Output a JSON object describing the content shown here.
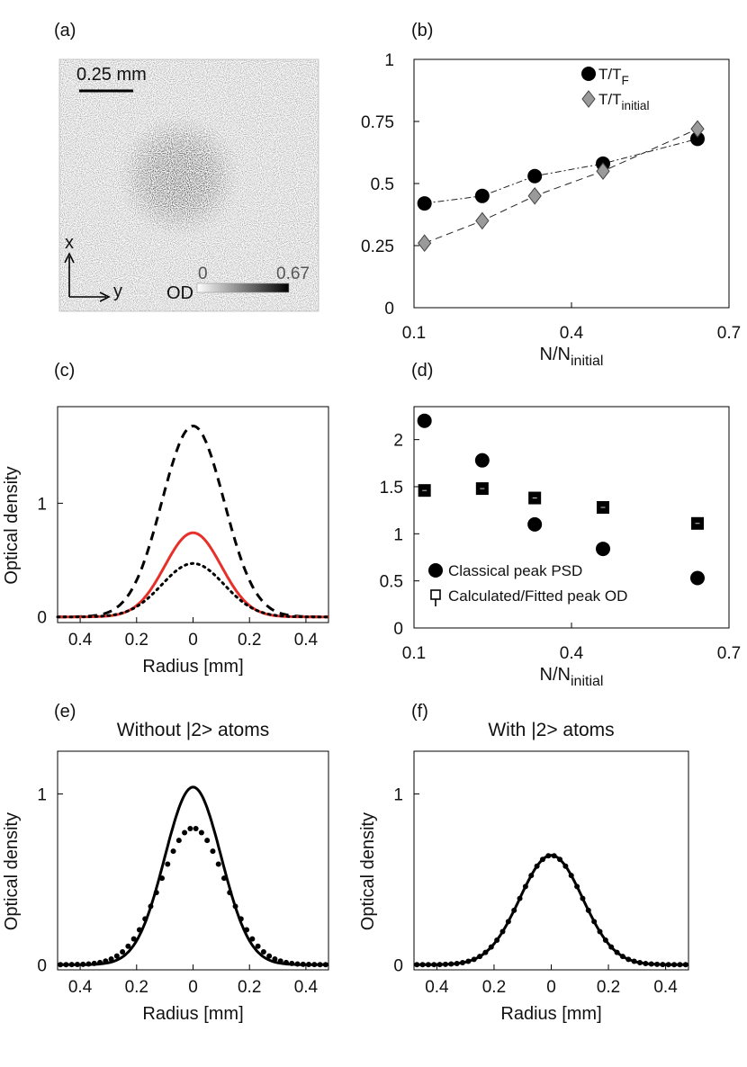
{
  "panel_labels": [
    "(a)",
    "(b)",
    "(c)",
    "(d)",
    "(e)",
    "(f)"
  ],
  "panel_a": {
    "scale_label": "0.25 mm",
    "axis_x": "x",
    "axis_y": "y",
    "od_label": "OD",
    "cbar_min": "0",
    "cbar_max": "0.67",
    "colormap": [
      "#ffffff",
      "#000000"
    ]
  },
  "chart_data": [
    {
      "panel": "b",
      "type": "line",
      "xlabel_main": "N/N",
      "xlabel_sub": "initial",
      "ylabel": "",
      "xlim": [
        0.1,
        0.7
      ],
      "ylim": [
        0,
        1
      ],
      "x_ticks": [
        "0.1",
        "0.4",
        "0.7"
      ],
      "y_ticks": [
        "0",
        "0.25",
        "0.5",
        "0.75",
        "1"
      ],
      "legend_position": "top-right",
      "series": [
        {
          "name_main": "T/T",
          "name_sub": "F",
          "marker": "circle",
          "color": "#000000",
          "line": "dash-dot",
          "x": [
            0.12,
            0.23,
            0.33,
            0.46,
            0.64
          ],
          "y": [
            0.42,
            0.45,
            0.53,
            0.58,
            0.68
          ]
        },
        {
          "name_main": "T/T",
          "name_sub": "initial",
          "marker": "diamond",
          "color": "#9a9a9a",
          "line": "dashed",
          "x": [
            0.12,
            0.23,
            0.33,
            0.46,
            0.64
          ],
          "y": [
            0.26,
            0.35,
            0.45,
            0.55,
            0.72
          ]
        }
      ]
    },
    {
      "panel": "c",
      "type": "line",
      "xlabel": "Radius [mm]",
      "ylabel": "Optical density",
      "xlim": [
        -0.48,
        0.48
      ],
      "ylim": [
        -0.05,
        1.85
      ],
      "x_ticks": [
        "0.4",
        "0.2",
        "0",
        "0.2",
        "0.4"
      ],
      "y_ticks": [
        "0",
        "1"
      ],
      "series": [
        {
          "style": "dashed",
          "color": "#000000",
          "amplitude": 1.68,
          "width_mm": 0.11
        },
        {
          "style": "solid",
          "color": "#e8302a",
          "amplitude": 0.74,
          "width_mm": 0.1
        },
        {
          "style": "dotted",
          "color": "#000000",
          "amplitude": 0.47,
          "width_mm": 0.11
        }
      ]
    },
    {
      "panel": "d",
      "type": "scatter",
      "xlabel_main": "N/N",
      "xlabel_sub": "initial",
      "ylabel": "",
      "xlim": [
        0.1,
        0.7
      ],
      "ylim": [
        0,
        2.35
      ],
      "x_ticks": [
        "0.1",
        "0.4",
        "0.7"
      ],
      "y_ticks": [
        "0",
        "0.5",
        "1",
        "1.5",
        "2"
      ],
      "legend_position": "bottom-left",
      "series": [
        {
          "name": "Classical peak PSD",
          "marker": "circle",
          "color": "#000000",
          "x": [
            0.12,
            0.23,
            0.33,
            0.46,
            0.64
          ],
          "y": [
            2.2,
            1.78,
            1.1,
            0.84,
            0.53
          ]
        },
        {
          "name": "Calculated/Fitted peak OD",
          "marker": "square",
          "color": "#000000",
          "x": [
            0.12,
            0.23,
            0.33,
            0.46,
            0.64
          ],
          "y": [
            1.46,
            1.48,
            1.38,
            1.28,
            1.11
          ]
        }
      ]
    },
    {
      "panel": "e",
      "type": "line",
      "title": "Without |2> atoms",
      "xlabel": "Radius [mm]",
      "ylabel": "Optical density",
      "xlim": [
        -0.48,
        0.48
      ],
      "ylim": [
        -0.03,
        1.25
      ],
      "x_ticks": [
        "0.4",
        "0.2",
        "0",
        "0.2",
        "0.4"
      ],
      "y_ticks": [
        "0",
        "1"
      ],
      "series": [
        {
          "style": "solid",
          "color": "#000000",
          "amplitude": 1.04,
          "width_mm": 0.1
        },
        {
          "style": "dots",
          "color": "#000000",
          "amplitude": 0.8,
          "width_mm": 0.115
        }
      ]
    },
    {
      "panel": "f",
      "type": "line",
      "title": "With |2> atoms",
      "xlabel": "Radius [mm]",
      "ylabel": "Optical density",
      "xlim": [
        -0.48,
        0.48
      ],
      "ylim": [
        -0.03,
        1.25
      ],
      "x_ticks": [
        "0.4",
        "0.2",
        "0",
        "0.2",
        "0.4"
      ],
      "y_ticks": [
        "0",
        "1"
      ],
      "series": [
        {
          "style": "solid",
          "color": "#000000",
          "amplitude": 0.64,
          "width_mm": 0.11
        },
        {
          "style": "dots",
          "color": "#000000",
          "amplitude": 0.64,
          "width_mm": 0.11
        }
      ]
    }
  ]
}
